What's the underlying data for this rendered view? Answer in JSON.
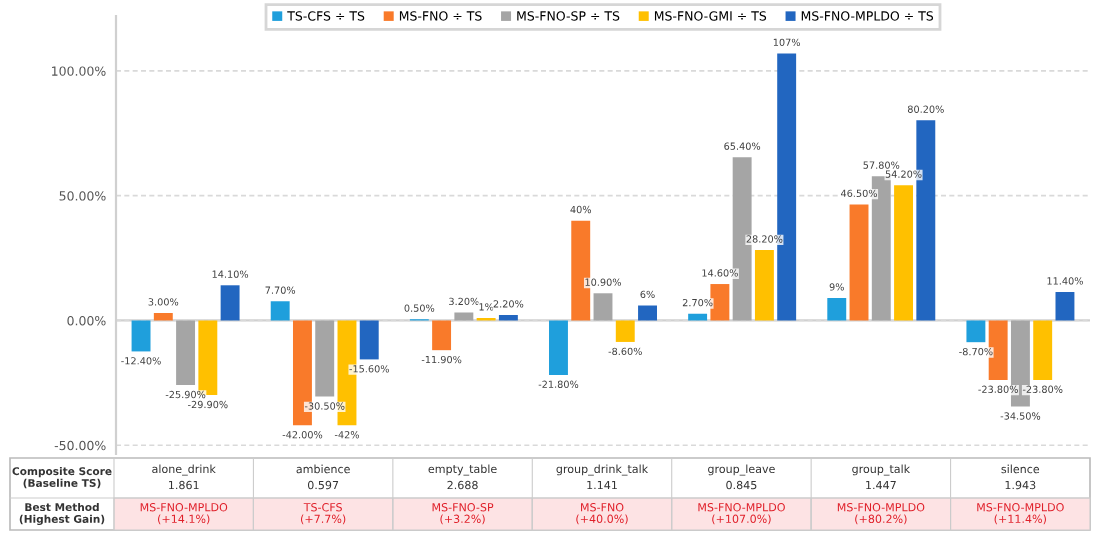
{
  "chart_data": {
    "type": "bar",
    "categories": [
      "alone_drink",
      "ambience",
      "empty_table",
      "group_drink_talk",
      "group_leave",
      "group_talk",
      "silence"
    ],
    "series": [
      {
        "name": "TS-CFS ÷ TS",
        "color": "#1f9fdc",
        "values": [
          -12.4,
          7.7,
          0.5,
          -21.8,
          2.7,
          9,
          -8.7
        ],
        "value_labels": [
          "-12.40%",
          "7.70%",
          "0.50%",
          "-21.80%",
          "2.70%",
          "9%",
          "-8.70%"
        ]
      },
      {
        "name": "MS-FNO ÷ TS",
        "color": "#f97a2a",
        "values": [
          3.0,
          -42.0,
          -11.9,
          40,
          14.6,
          46.5,
          -23.8
        ],
        "value_labels": [
          "3.00%",
          "-42.00%",
          "-11.90%",
          "40%",
          "14.60%",
          "46.50%",
          "-23.80%"
        ]
      },
      {
        "name": "MS-FNO-SP ÷ TS",
        "color": "#a5a5a5",
        "values": [
          -25.9,
          -30.5,
          3.2,
          10.9,
          65.4,
          57.8,
          -34.5
        ],
        "value_labels": [
          "-25.90%",
          "-30.50%",
          "3.20%",
          "10.90%",
          "65.40%",
          "57.80%",
          "-34.50%"
        ]
      },
      {
        "name": "MS-FNO-GMI ÷ TS",
        "color": "#ffc000",
        "values": [
          -29.9,
          -42,
          1,
          -8.6,
          28.2,
          54.2,
          -23.8
        ],
        "value_labels": [
          "-29.90%",
          "-42%",
          "1%",
          "-8.60%",
          "28.20%",
          "54.20%",
          "-23.80%"
        ]
      },
      {
        "name": "MS-FNO-MPLDO ÷ TS",
        "color": "#2266c0",
        "values": [
          14.1,
          -15.6,
          2.2,
          6,
          107,
          80.2,
          11.4
        ],
        "value_labels": [
          "14.10%",
          "-15.60%",
          "2.20%",
          "6%",
          "107%",
          "80.20%",
          "11.40%"
        ]
      }
    ],
    "ylim": [
      -53.5,
      122
    ],
    "yticks": [
      {
        "value": -50,
        "label": "-50.00%"
      },
      {
        "value": 0,
        "label": "0.00%"
      },
      {
        "value": 50,
        "label": "50.00%"
      },
      {
        "value": 100,
        "label": "100.00%"
      }
    ],
    "grid": "y",
    "legend": "top",
    "annotations": [
      "Composite Score\n(Baseline TS)",
      "Best Method\n(Highest Gain)",
      "1.861",
      "0.597",
      "2.688",
      "1.141",
      "0.845",
      "1.447",
      "1.943",
      "MS-FNO-MPLDO\n(+14.1%)",
      "TS-CFS\n(+7.7%)",
      "MS-FNO-SP\n(+3.2%)",
      "MS-FNO\n(+40.0%)",
      "MS-FNO-MPLDO\n(+107.0%)",
      "MS-FNO-MPLDO\n(+80.2%)",
      "MS-FNO-MPLDO\n(+11.4%)"
    ]
  }
}
